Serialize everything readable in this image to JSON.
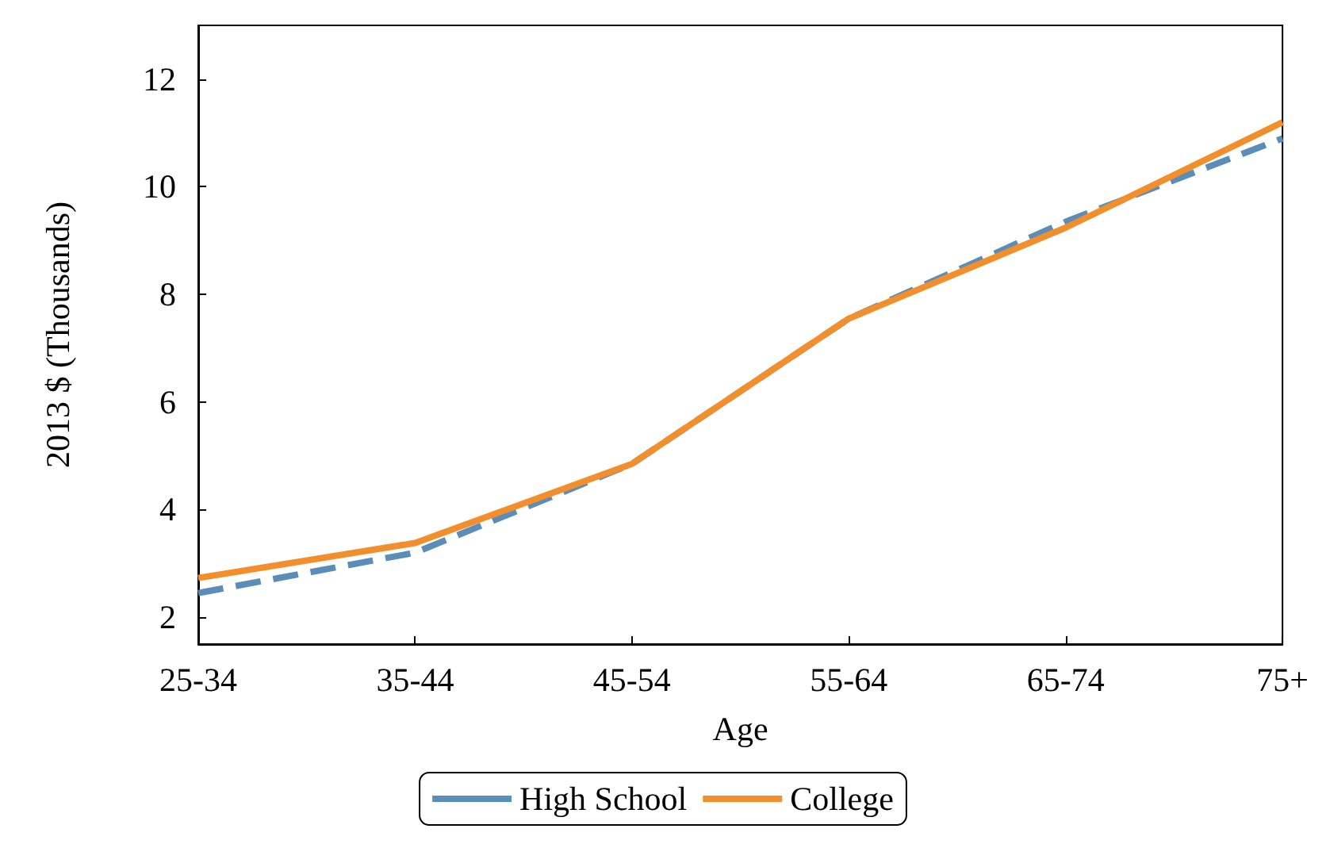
{
  "chart_data": {
    "type": "line",
    "xlabel": "Age",
    "ylabel": "2013 $ (Thousands)",
    "categories": [
      "25-34",
      "35-44",
      "45-54",
      "55-64",
      "65-74",
      "75+"
    ],
    "series": [
      {
        "name": "High School",
        "color": "#5b8db8",
        "line_style": "dashed",
        "values": [
          2.45,
          3.2,
          4.85,
          7.55,
          9.35,
          10.9
        ]
      },
      {
        "name": "College",
        "color": "#f28e2b",
        "line_style": "solid",
        "values": [
          2.73,
          3.38,
          4.85,
          7.55,
          9.24,
          11.2
        ]
      }
    ],
    "ylim": [
      1.5,
      13
    ],
    "yticks": [
      2,
      4,
      6,
      8,
      10,
      12
    ],
    "grid": false,
    "legend": "bottom",
    "marker": "none"
  }
}
